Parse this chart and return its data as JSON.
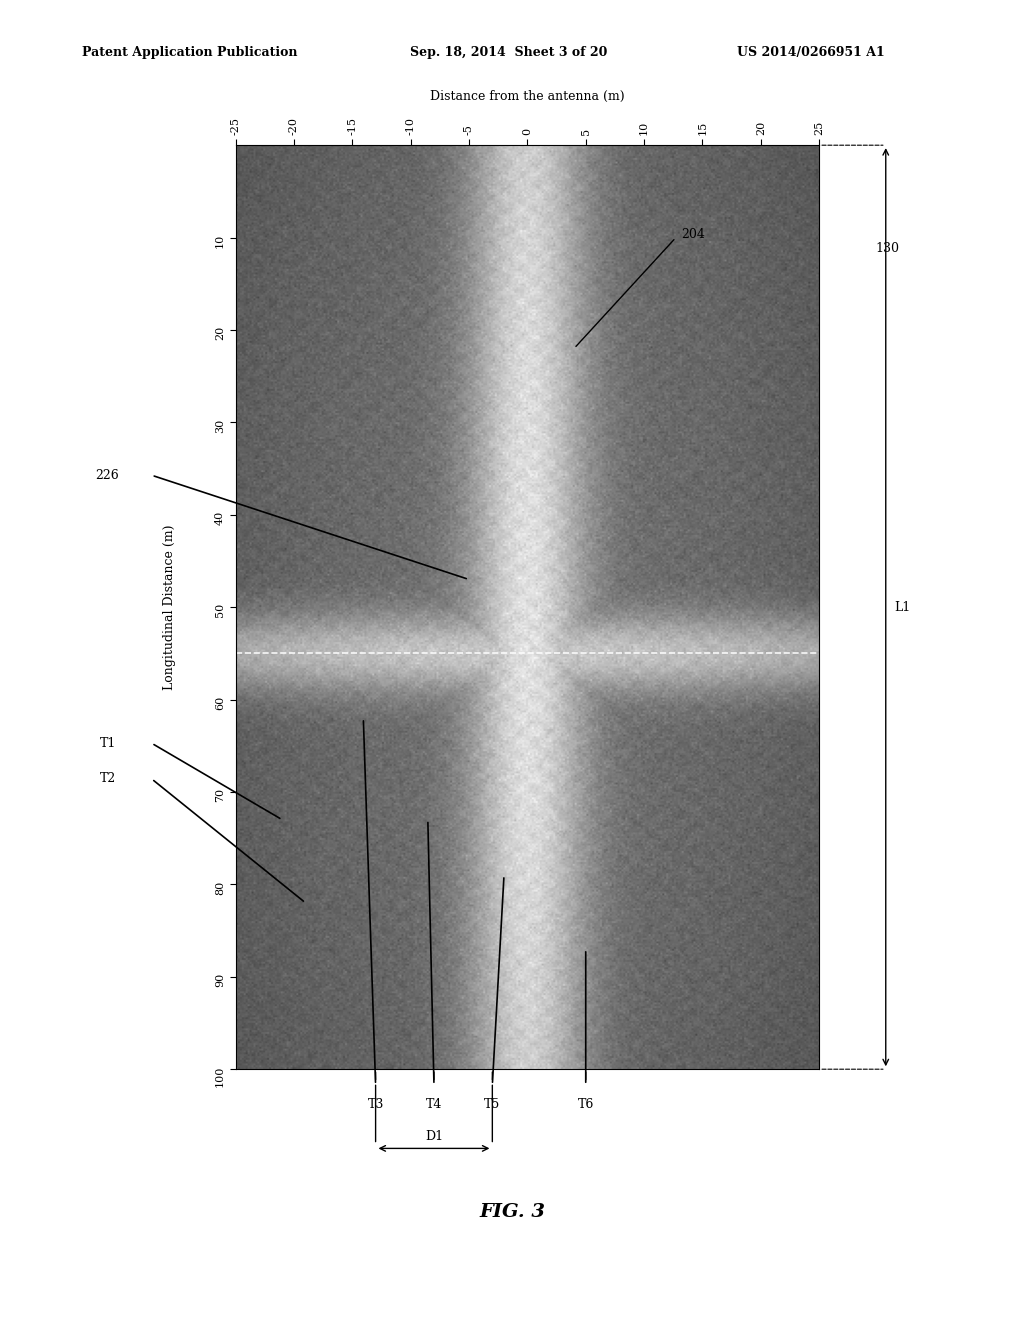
{
  "header_left": "Patent Application Publication",
  "header_center": "Sep. 18, 2014  Sheet 3 of 20",
  "header_right": "US 2014/0266951 A1",
  "fig_label": "FIG. 3",
  "x_label": "Distance from the antenna (m)",
  "y_label": "Longitudinal Distance (m)",
  "x_ticks": [
    -25,
    -20,
    -15,
    -10,
    -5,
    0,
    5,
    10,
    15,
    20,
    25
  ],
  "y_ticks": [
    10,
    20,
    30,
    40,
    50,
    60,
    70,
    80,
    90,
    100
  ],
  "background_color": "#ffffff"
}
